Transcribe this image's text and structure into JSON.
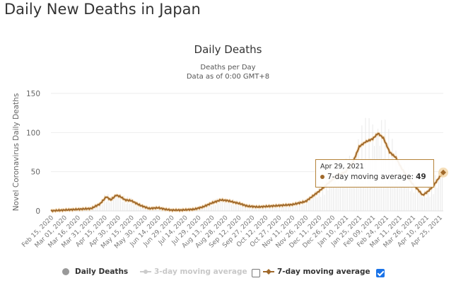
{
  "page": {
    "title": "Daily New Deaths in Japan"
  },
  "chart_data": {
    "type": "line",
    "title": "Daily Deaths",
    "subtitle": "Deaths per Day",
    "subtitle2": "Data as of 0:00 GMT+8",
    "ylabel": "Novel Coronavirus Daily Deaths",
    "xlabel": "",
    "ylim": [
      0,
      150
    ],
    "yticks": [
      "0",
      "50",
      "100",
      "150"
    ],
    "yticks_values": [
      0,
      50,
      100,
      150
    ],
    "grid": true,
    "x_start": "2020-02-15",
    "x_end": "2021-04-29",
    "xticks": [
      "Feb 15, 2020",
      "Mar 01, 2020",
      "Mar 16, 2020",
      "Mar 31, 2020",
      "Apr 15, 2020",
      "Apr 30, 2020",
      "May 15, 2020",
      "May 30, 2020",
      "Jun 14, 2020",
      "Jun 29, 2020",
      "Jul 14, 2020",
      "Jul 29, 2020",
      "Aug 13, 2020",
      "Aug 28, 2020",
      "Sep 12, 2020",
      "Sep 27, 2020",
      "Oct 12, 2020",
      "Oct 27, 2020",
      "Nov 11, 2020",
      "Nov 26, 2020",
      "Dec 11, 2020",
      "Dec 26, 2020",
      "Jan 10, 2021",
      "Jan 25, 2021",
      "Feb 09, 2021",
      "Feb 24, 2021",
      "Mar 11, 2021",
      "Mar 26, 2021",
      "Apr 10, 2021",
      "Apr 25, 2021"
    ],
    "series": [
      {
        "name": "7-day moving average",
        "color": "#a0692b",
        "visible": true,
        "day_offsets": [
          0,
          14,
          30,
          45,
          55,
          62,
          67,
          73,
          78,
          83,
          90,
          100,
          110,
          120,
          128,
          135,
          145,
          160,
          170,
          180,
          190,
          198,
          205,
          212,
          220,
          232,
          245,
          258,
          270,
          285,
          300,
          310,
          320,
          330,
          338,
          345,
          352,
          360,
          366,
          372,
          379,
          386,
          392,
          398,
          404,
          410,
          416,
          422,
          428,
          434,
          439
        ],
        "values": [
          0,
          1,
          2,
          3,
          9,
          18,
          14,
          20,
          18,
          14,
          13,
          7,
          3,
          4,
          2,
          1,
          1,
          2,
          5,
          10,
          14,
          13,
          11,
          9,
          6,
          5,
          6,
          7,
          8,
          12,
          25,
          35,
          45,
          50,
          62,
          82,
          88,
          92,
          99,
          93,
          75,
          68,
          55,
          45,
          35,
          28,
          20,
          25,
          32,
          42,
          49
        ]
      },
      {
        "name": "3-day moving average",
        "color": "#cccccc",
        "visible": false
      },
      {
        "name": "Daily Deaths",
        "color": "#999999",
        "visible": true,
        "style": "bars (faint)"
      }
    ],
    "tooltip": {
      "date": "Apr 29, 2021",
      "label": "7-day moving average",
      "value": "49"
    },
    "legend": {
      "position": "bottom",
      "items": [
        {
          "label": "Daily Deaths",
          "checked": null
        },
        {
          "label": "3-day moving average",
          "checked": false
        },
        {
          "label": "7-day moving average",
          "checked": true
        }
      ]
    }
  }
}
